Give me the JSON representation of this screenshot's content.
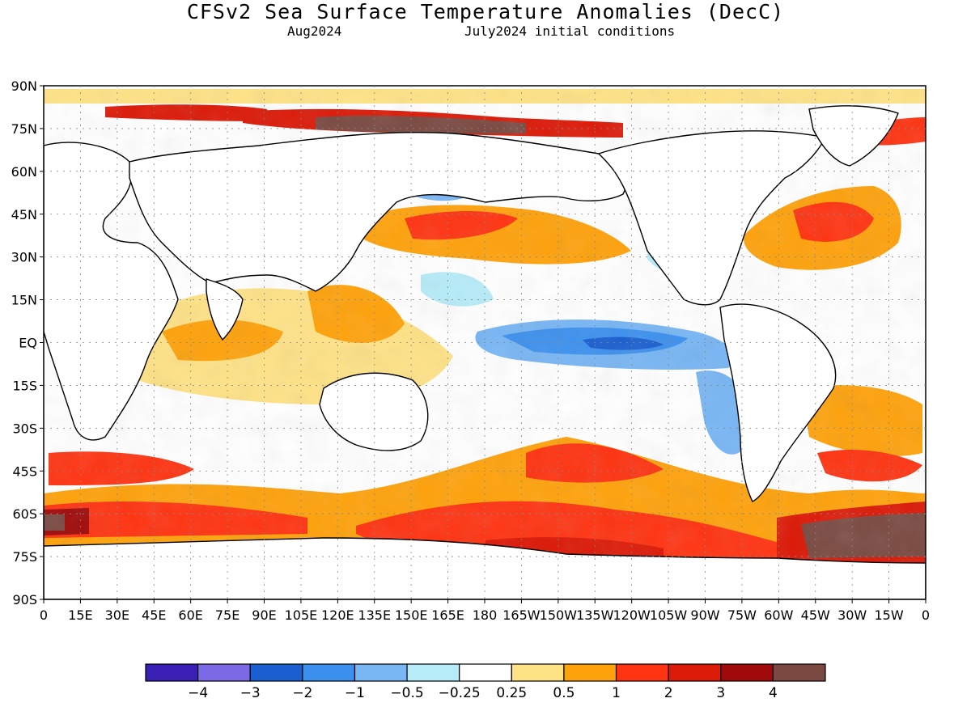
{
  "title": "CFSv2 Sea Surface Temperature Anomalies (DecC)",
  "valid_month": "Aug2024",
  "init_label": "July2024 initial conditions",
  "lat_labels": [
    "90N",
    "75N",
    "60N",
    "45N",
    "30N",
    "15N",
    "EQ",
    "15S",
    "30S",
    "45S",
    "60S",
    "75S",
    "90S"
  ],
  "lon_labels": [
    "0",
    "15E",
    "30E",
    "45E",
    "60E",
    "75E",
    "90E",
    "105E",
    "120E",
    "135E",
    "150E",
    "165E",
    "180",
    "165W",
    "150W",
    "135W",
    "120W",
    "105W",
    "90W",
    "75W",
    "60W",
    "45W",
    "30W",
    "15W",
    "0"
  ],
  "colorbar": {
    "colors": [
      "#3a1fb4",
      "#7a6ae6",
      "#1a5fd0",
      "#3d91ee",
      "#78b6f4",
      "#b6ecf8",
      "#ffffff",
      "#fee286",
      "#fea20c",
      "#fe3412",
      "#dc1a08",
      "#a00a0a",
      "#7a4a42"
    ],
    "tick_labels": [
      "−4",
      "−3",
      "−2",
      "−1",
      "−0.5",
      "−0.25",
      "0.25",
      "0.5",
      "1",
      "2",
      "3",
      "4"
    ]
  }
}
